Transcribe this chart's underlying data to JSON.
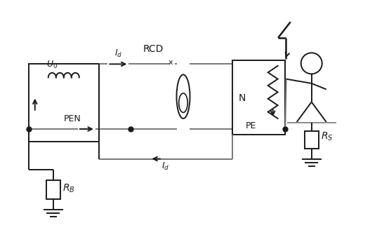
{
  "bg_color": "#ffffff",
  "line_color": "#1a1a1a",
  "gray_color": "#777777",
  "figsize": [
    5.27,
    3.58
  ],
  "dpi": 100,
  "xlim": [
    0,
    10.5
  ],
  "ylim": [
    0,
    6.5
  ]
}
